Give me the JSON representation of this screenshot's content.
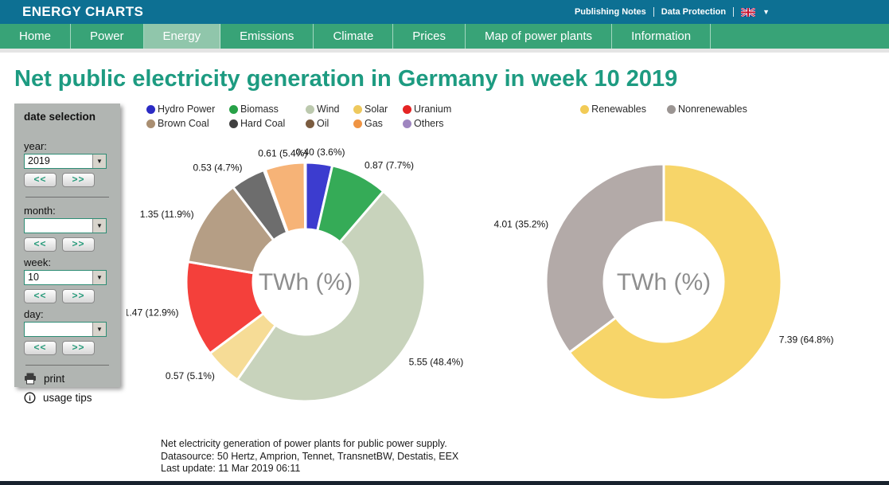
{
  "header": {
    "brand": "ENERGY CHARTS",
    "links": [
      "Publishing Notes",
      "Data Protection"
    ],
    "language_icon": "uk-flag-icon",
    "colors": {
      "topbar": "#0d7093",
      "nav": "#38a377",
      "nav_active": "#90c6ab",
      "bottombar": "#18222d"
    }
  },
  "nav": {
    "items": [
      {
        "label": "Home",
        "active": false
      },
      {
        "label": "Power",
        "active": false
      },
      {
        "label": "Energy",
        "active": true
      },
      {
        "label": "Emissions",
        "active": false
      },
      {
        "label": "Climate",
        "active": false
      },
      {
        "label": "Prices",
        "active": false
      },
      {
        "label": "Map of power plants",
        "active": false
      },
      {
        "label": "Information",
        "active": false
      }
    ]
  },
  "page_title": "Net public electricity generation in Germany in week 10 2019",
  "title_color": "#1d9b81",
  "sidebar": {
    "title": "date selection",
    "panel_bg": "#b1b5b2",
    "prev_label": "<<",
    "next_label": ">>",
    "fields": [
      {
        "label": "year:",
        "value": "2019"
      },
      {
        "label": "month:",
        "value": ""
      },
      {
        "label": "week:",
        "value": "10"
      },
      {
        "label": "day:",
        "value": ""
      }
    ],
    "actions": [
      {
        "icon": "printer-icon",
        "label": "print"
      },
      {
        "icon": "info-icon",
        "label": "usage tips"
      }
    ]
  },
  "chart_data": [
    {
      "type": "pie",
      "subtype": "donut",
      "unit": "TWh",
      "center_label": "TWh (%)",
      "legend_position": "top",
      "start_angle_deg": 0,
      "series": [
        {
          "name": "Hydro Power",
          "value": 0.4,
          "pct": 3.6,
          "label": "0.40 (3.6%)",
          "color": "#2b2bc4",
          "slice_color": "#3c3ccf"
        },
        {
          "name": "Biomass",
          "value": 0.87,
          "pct": 7.7,
          "label": "0.87 (7.7%)",
          "color": "#27a147",
          "slice_color": "#35ab57"
        },
        {
          "name": "Wind",
          "value": 5.55,
          "pct": 48.4,
          "label": "5.55 (48.4%)",
          "color": "#bcc9ae",
          "slice_color": "#c8d3bc"
        },
        {
          "name": "Solar",
          "value": 0.57,
          "pct": 5.1,
          "label": "0.57 (5.1%)",
          "color": "#eec95e",
          "slice_color": "#f6dc96"
        },
        {
          "name": "Uranium",
          "value": 1.47,
          "pct": 12.9,
          "label": "1.47 (12.9%)",
          "color": "#e52424",
          "slice_color": "#f4403b"
        },
        {
          "name": "Brown Coal",
          "value": 1.35,
          "pct": 11.9,
          "label": "1.35 (11.9%)",
          "color": "#a98e71",
          "slice_color": "#b59e85"
        },
        {
          "name": "Hard Coal",
          "value": 0.53,
          "pct": 4.7,
          "label": "0.53 (4.7%)",
          "color": "#3f3f3f",
          "slice_color": "#6d6d6d"
        },
        {
          "name": "Oil",
          "value": null,
          "pct": 0.2,
          "label": "",
          "color": "#7b5c40",
          "slice_color": "#8a6c50"
        },
        {
          "name": "Gas",
          "value": 0.61,
          "pct": 5.4,
          "label": "0.61 (5.4%)",
          "color": "#ef9443",
          "slice_color": "#f6b377"
        },
        {
          "name": "Others",
          "value": null,
          "pct": 0.1,
          "label": "",
          "color": "#9f86c0",
          "slice_color": "#ab95c8"
        }
      ]
    },
    {
      "type": "pie",
      "subtype": "donut",
      "unit": "TWh",
      "center_label": "TWh (%)",
      "legend_position": "top",
      "start_angle_deg": 0,
      "series": [
        {
          "name": "Renewables",
          "value": 7.39,
          "pct": 64.8,
          "label": "7.39 (64.8%)",
          "color": "#f2cb56",
          "slice_color": "#f7d569"
        },
        {
          "name": "Nonrenewables",
          "value": 4.01,
          "pct": 35.2,
          "label": "4.01 (35.2%)",
          "color": "#9b9593",
          "slice_color": "#b3aaa8"
        }
      ]
    }
  ],
  "footer": {
    "lines": [
      "Net electricity generation of power plants for public power supply.",
      "Datasource: 50 Hertz, Amprion, Tennet, TransnetBW, Destatis, EEX",
      "Last update: 11 Mar 2019 06:11"
    ]
  }
}
